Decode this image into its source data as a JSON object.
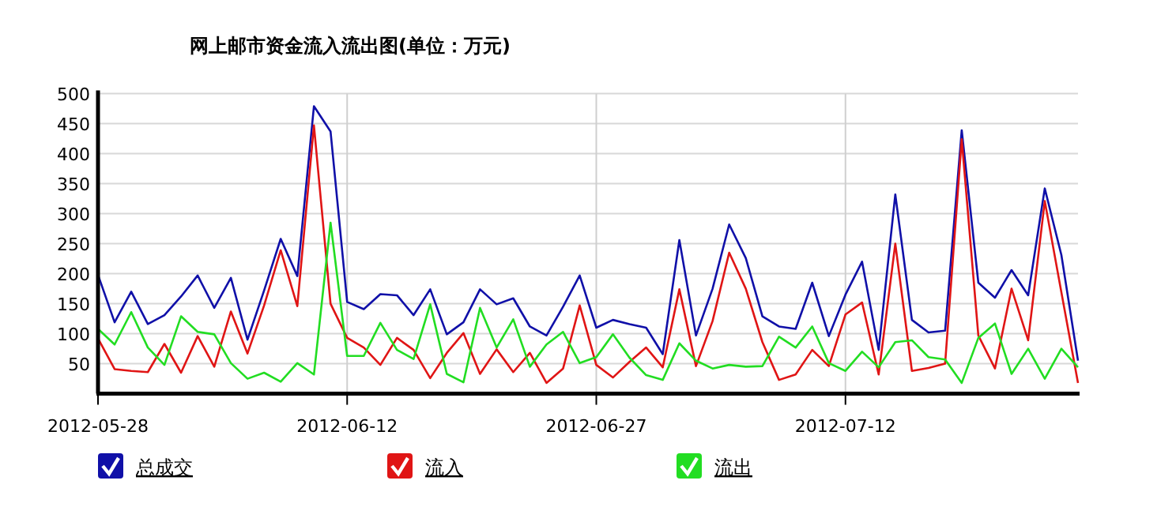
{
  "chart_data": {
    "type": "line",
    "title": "网上邮市资金流入流出图(单位：万元)",
    "x": [
      "2012-05-28",
      "2012-05-29",
      "2012-05-30",
      "2012-05-31",
      "2012-06-01",
      "2012-06-02",
      "2012-06-03",
      "2012-06-04",
      "2012-06-05",
      "2012-06-06",
      "2012-06-07",
      "2012-06-08",
      "2012-06-09",
      "2012-06-10",
      "2012-06-11",
      "2012-06-12",
      "2012-06-13",
      "2012-06-14",
      "2012-06-15",
      "2012-06-16",
      "2012-06-17",
      "2012-06-18",
      "2012-06-19",
      "2012-06-20",
      "2012-06-21",
      "2012-06-22",
      "2012-06-23",
      "2012-06-24",
      "2012-06-25",
      "2012-06-26",
      "2012-06-27",
      "2012-06-28",
      "2012-06-29",
      "2012-06-30",
      "2012-07-01",
      "2012-07-02",
      "2012-07-03",
      "2012-07-04",
      "2012-07-05",
      "2012-07-06",
      "2012-07-07",
      "2012-07-08",
      "2012-07-09",
      "2012-07-10",
      "2012-07-11",
      "2012-07-12",
      "2012-07-13",
      "2012-07-14",
      "2012-07-15",
      "2012-07-16",
      "2012-07-17",
      "2012-07-18",
      "2012-07-19",
      "2012-07-20",
      "2012-07-21",
      "2012-07-22",
      "2012-07-23",
      "2012-07-24",
      "2012-07-25",
      "2012-07-26"
    ],
    "series": [
      {
        "name": "总成交",
        "color": "#1010a8",
        "values": [
          198,
          119,
          170,
          116,
          131,
          162,
          197,
          143,
          193,
          90,
          172,
          258,
          196,
          479,
          437,
          153,
          141,
          166,
          164,
          131,
          174,
          99,
          119,
          174,
          149,
          159,
          112,
          97,
          145,
          197,
          110,
          123,
          116,
          110,
          66,
          256,
          97,
          175,
          282,
          226,
          129,
          112,
          108,
          185,
          96,
          165,
          220,
          73,
          332,
          123,
          102,
          105,
          439,
          185,
          160,
          206,
          164,
          342,
          231,
          55
        ]
      },
      {
        "name": "流入",
        "color": "#e01515",
        "values": [
          92,
          41,
          38,
          36,
          83,
          35,
          96,
          45,
          137,
          67,
          147,
          239,
          146,
          447,
          150,
          93,
          77,
          48,
          93,
          73,
          26,
          68,
          101,
          33,
          74,
          36,
          68,
          18,
          42,
          147,
          48,
          27,
          53,
          77,
          44,
          174,
          46,
          121,
          235,
          175,
          86,
          23,
          32,
          73,
          46,
          132,
          152,
          32,
          250,
          38,
          43,
          50,
          424,
          97,
          42,
          175,
          89,
          321,
          169,
          18
        ]
      },
      {
        "name": "流出",
        "color": "#22dd22",
        "values": [
          108,
          82,
          136,
          77,
          48,
          129,
          103,
          99,
          51,
          25,
          35,
          20,
          51,
          32,
          285,
          63,
          63,
          118,
          73,
          58,
          149,
          33,
          19,
          143,
          77,
          124,
          45,
          82,
          103,
          51,
          61,
          99,
          60,
          31,
          23,
          84,
          55,
          42,
          48,
          45,
          46,
          95,
          77,
          112,
          51,
          38,
          70,
          44,
          86,
          89,
          61,
          57,
          18,
          93,
          117,
          33,
          75,
          25,
          75,
          44
        ]
      }
    ],
    "xlim": [
      "2012-05-28",
      "2012-07-26"
    ],
    "xticks": [
      "2012-05-28",
      "2012-06-12",
      "2012-06-27",
      "2012-07-12"
    ],
    "ylim": [
      0,
      500
    ],
    "yticks": [
      50,
      100,
      150,
      200,
      250,
      300,
      350,
      400,
      450,
      500
    ],
    "grid": true,
    "legend": "bottom",
    "marker": "none",
    "line_style": "solid"
  }
}
